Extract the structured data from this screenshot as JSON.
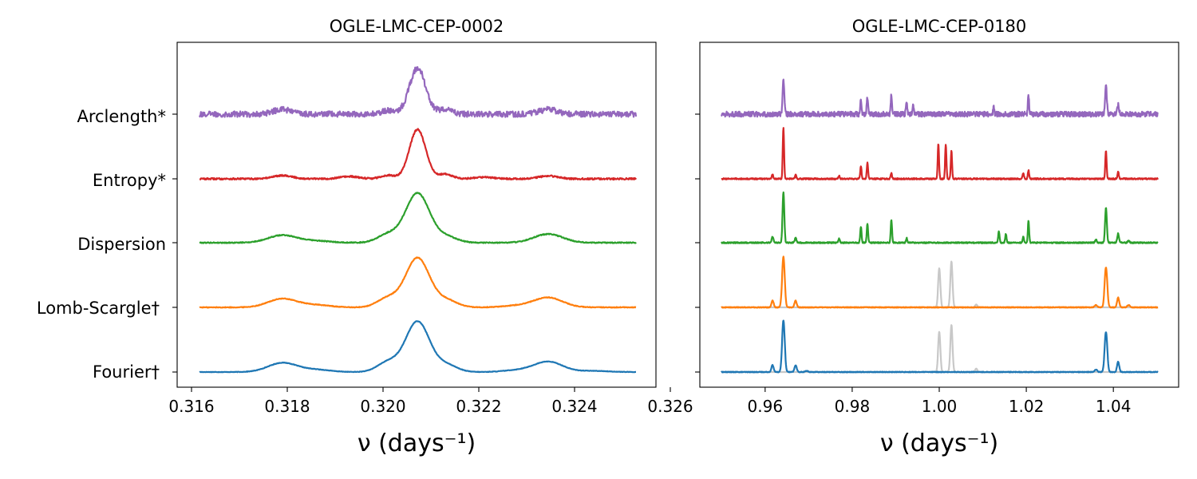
{
  "chart_data": [
    {
      "type": "line",
      "title": "OGLE-LMC-CEP-0002",
      "xlabel": "ν (days⁻¹)",
      "ylabel": "",
      "xlim": [
        0.3157,
        0.3257
      ],
      "xticks": [
        "0.316",
        "0.318",
        "0.320",
        "0.322",
        "0.324",
        "0.326"
      ],
      "xtick_values": [
        0.316,
        0.318,
        0.32,
        0.322,
        0.324,
        0.326
      ],
      "yticks": [
        "Fourier†",
        "Lomb-Scargle†",
        "Dispersion",
        "Entropy*",
        "Arclength*"
      ],
      "series": [
        {
          "name": "Fourier†",
          "color": "#1f77b4",
          "noise": 0.004,
          "offset": 0,
          "peaks": [
            [
              0.3179,
              0.16,
              0.0003
            ],
            [
              0.3186,
              0.04,
              0.0003
            ],
            [
              0.3201,
              0.17,
              0.00022
            ],
            [
              0.32072,
              0.88,
              0.00025
            ],
            [
              0.32133,
              0.12,
              0.00022
            ],
            [
              0.3228,
              0.03,
              0.0003
            ],
            [
              0.32345,
              0.18,
              0.0003
            ],
            [
              0.3244,
              0.02,
              0.0003
            ]
          ]
        },
        {
          "name": "Lomb-Scargle†",
          "color": "#ff7f0e",
          "noise": 0.006,
          "offset": 1,
          "peaks": [
            [
              0.3179,
              0.15,
              0.0003
            ],
            [
              0.3186,
              0.04,
              0.0003
            ],
            [
              0.3201,
              0.16,
              0.00022
            ],
            [
              0.32072,
              0.86,
              0.00025
            ],
            [
              0.32133,
              0.12,
              0.00022
            ],
            [
              0.3228,
              0.03,
              0.0003
            ],
            [
              0.32345,
              0.17,
              0.0003
            ]
          ]
        },
        {
          "name": "Dispersion",
          "color": "#2ca02c",
          "noise": 0.008,
          "offset": 2,
          "peaks": [
            [
              0.3179,
              0.13,
              0.0003
            ],
            [
              0.3186,
              0.03,
              0.0003
            ],
            [
              0.3201,
              0.14,
              0.00022
            ],
            [
              0.32072,
              0.86,
              0.00025
            ],
            [
              0.32133,
              0.1,
              0.00022
            ],
            [
              0.32345,
              0.15,
              0.0003
            ]
          ]
        },
        {
          "name": "Entropy*",
          "color": "#d62728",
          "noise": 0.014,
          "offset": 3,
          "peaks": [
            [
              0.3179,
              0.06,
              0.0002
            ],
            [
              0.3193,
              0.04,
              0.0002
            ],
            [
              0.3201,
              0.06,
              0.00015
            ],
            [
              0.32072,
              0.86,
              0.00017
            ],
            [
              0.3213,
              0.08,
              0.00015
            ],
            [
              0.3221,
              0.03,
              0.0002
            ],
            [
              0.32345,
              0.05,
              0.0002
            ]
          ]
        },
        {
          "name": "Arclength*",
          "color": "#9467bd",
          "noise": 0.05,
          "offset": 4,
          "peaks": [
            [
              0.3179,
              0.08,
              0.0002
            ],
            [
              0.3201,
              0.06,
              0.00015
            ],
            [
              0.32072,
              0.8,
              0.00017
            ],
            [
              0.3213,
              0.08,
              0.00015
            ],
            [
              0.32345,
              0.08,
              0.0002
            ]
          ]
        }
      ]
    },
    {
      "type": "line",
      "title": "OGLE-LMC-CEP-0180",
      "xlabel": "ν (days⁻¹)",
      "ylabel": "",
      "xlim": [
        0.945,
        1.055
      ],
      "xticks": [
        "0.96",
        "0.98",
        "1.00",
        "1.02",
        "1.04"
      ],
      "xtick_values": [
        0.96,
        0.98,
        1.0,
        1.02,
        1.04
      ],
      "series": [
        {
          "name": "Fourier†",
          "color": "#1f77b4",
          "noise": 0.006,
          "offset": 0,
          "peaks": [
            [
              0.9617,
              0.12,
              0.00025
            ],
            [
              0.9642,
              0.9,
              0.0003
            ],
            [
              0.967,
              0.12,
              0.00025
            ],
            [
              0.9695,
              0.02,
              0.0003
            ],
            [
              1.0383,
              0.7,
              0.0003
            ],
            [
              1.0411,
              0.18,
              0.00025
            ],
            [
              1.036,
              0.04,
              0.0003
            ]
          ],
          "ghost": {
            "color": "#c8c8c8",
            "peaks": [
              [
                1.0,
                0.7,
                0.00025
              ],
              [
                1.0028,
                0.82,
                0.00025
              ],
              [
                1.0085,
                0.06,
                0.00025
              ]
            ]
          }
        },
        {
          "name": "Lomb-Scargle†",
          "color": "#ff7f0e",
          "noise": 0.006,
          "offset": 1,
          "peaks": [
            [
              0.9617,
              0.12,
              0.00025
            ],
            [
              0.9642,
              0.88,
              0.0003
            ],
            [
              0.967,
              0.12,
              0.00025
            ],
            [
              1.0383,
              0.7,
              0.0003
            ],
            [
              1.0411,
              0.17,
              0.00025
            ],
            [
              1.036,
              0.04,
              0.0003
            ],
            [
              1.0435,
              0.04,
              0.0003
            ]
          ],
          "ghost": {
            "color": "#c8c8c8",
            "peaks": [
              [
                1.0,
                0.68,
                0.00025
              ],
              [
                1.0028,
                0.8,
                0.00025
              ],
              [
                1.0085,
                0.05,
                0.00025
              ]
            ]
          }
        },
        {
          "name": "Dispersion",
          "color": "#2ca02c",
          "noise": 0.01,
          "offset": 2,
          "peaks": [
            [
              0.9617,
              0.1,
              0.0002
            ],
            [
              0.9642,
              0.88,
              0.0002
            ],
            [
              0.967,
              0.08,
              0.0002
            ],
            [
              0.977,
              0.07,
              0.00015
            ],
            [
              0.982,
              0.28,
              0.00015
            ],
            [
              0.9835,
              0.33,
              0.00015
            ],
            [
              0.989,
              0.4,
              0.00015
            ],
            [
              0.9925,
              0.08,
              0.00015
            ],
            [
              1.0137,
              0.2,
              0.00015
            ],
            [
              1.0153,
              0.15,
              0.00015
            ],
            [
              1.0193,
              0.1,
              0.00015
            ],
            [
              1.0205,
              0.38,
              0.00015
            ],
            [
              1.036,
              0.05,
              0.0002
            ],
            [
              1.0383,
              0.6,
              0.0002
            ],
            [
              1.0411,
              0.16,
              0.0002
            ],
            [
              1.0435,
              0.04,
              0.0002
            ]
          ]
        },
        {
          "name": "Entropy*",
          "color": "#d62728",
          "noise": 0.012,
          "offset": 3,
          "peaks": [
            [
              0.9617,
              0.08,
              0.00015
            ],
            [
              0.9642,
              0.9,
              0.00015
            ],
            [
              0.967,
              0.08,
              0.00015
            ],
            [
              0.977,
              0.05,
              0.00015
            ],
            [
              0.982,
              0.22,
              0.00015
            ],
            [
              0.9835,
              0.28,
              0.00015
            ],
            [
              0.989,
              0.1,
              0.00015
            ],
            [
              0.9998,
              0.62,
              0.00015
            ],
            [
              1.0015,
              0.6,
              0.00015
            ],
            [
              1.0028,
              0.5,
              0.00015
            ],
            [
              1.0205,
              0.15,
              0.00015
            ],
            [
              1.0193,
              0.1,
              0.00015
            ],
            [
              1.0383,
              0.48,
              0.00015
            ],
            [
              1.0411,
              0.13,
              0.00015
            ]
          ]
        },
        {
          "name": "Arclength*",
          "color": "#9467bd",
          "noise": 0.045,
          "offset": 4,
          "peaks": [
            [
              0.9642,
              0.58,
              0.0002
            ],
            [
              0.982,
              0.25,
              0.00015
            ],
            [
              0.9835,
              0.3,
              0.00015
            ],
            [
              0.989,
              0.35,
              0.00015
            ],
            [
              0.9925,
              0.2,
              0.00015
            ],
            [
              0.994,
              0.15,
              0.00015
            ],
            [
              1.0125,
              0.12,
              0.00015
            ],
            [
              1.0205,
              0.33,
              0.00015
            ],
            [
              1.0383,
              0.48,
              0.0002
            ],
            [
              1.0411,
              0.16,
              0.0002
            ]
          ]
        }
      ]
    }
  ]
}
